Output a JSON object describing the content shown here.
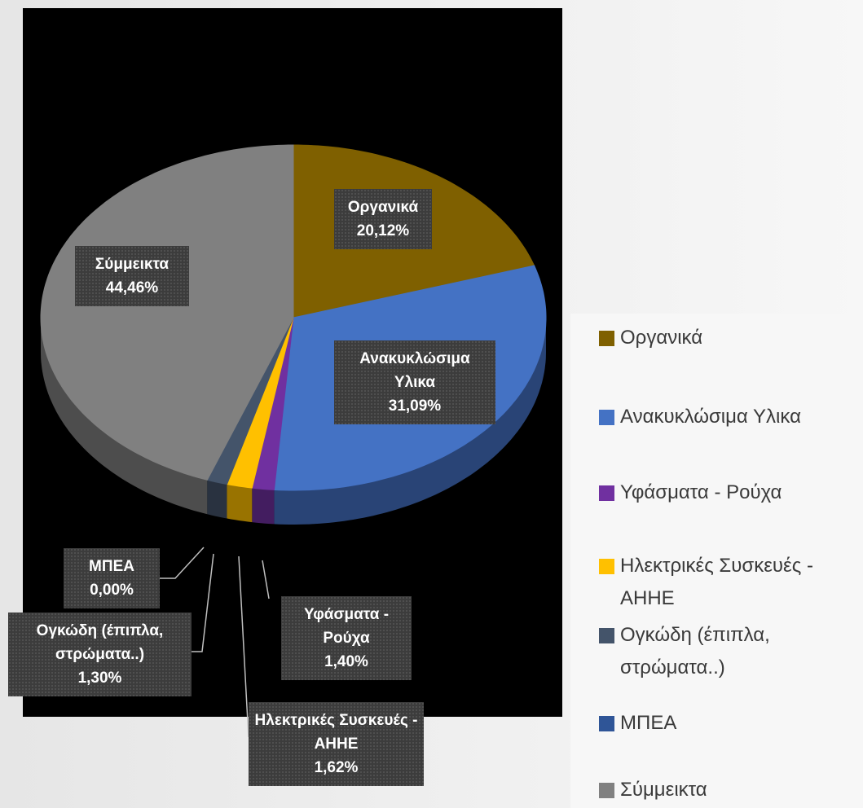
{
  "chart_data": {
    "type": "pie",
    "categories": [
      "Οργανικά",
      "Ανακυκλώσιμα Υλικα",
      "Υφάσματα - Ρούχα",
      "Ηλεκτρικές Συσκευές - ΑΗΗΕ",
      "Ογκώδη (έπιπλα, στρώματα..)",
      "ΜΠΕΑ",
      "Σύμμεικτα"
    ],
    "values": [
      20.12,
      31.09,
      1.4,
      1.62,
      1.3,
      0.0,
      44.46
    ],
    "value_labels": [
      "20,12%",
      "31,09%",
      "1,40%",
      "1,62%",
      "1,30%",
      "0,00%",
      "44,46%"
    ],
    "colors": [
      "#7f6000",
      "#4472c4",
      "#7030a0",
      "#ffc000",
      "#44546a",
      "#2f5597",
      "#808080"
    ],
    "legend": "right"
  }
}
